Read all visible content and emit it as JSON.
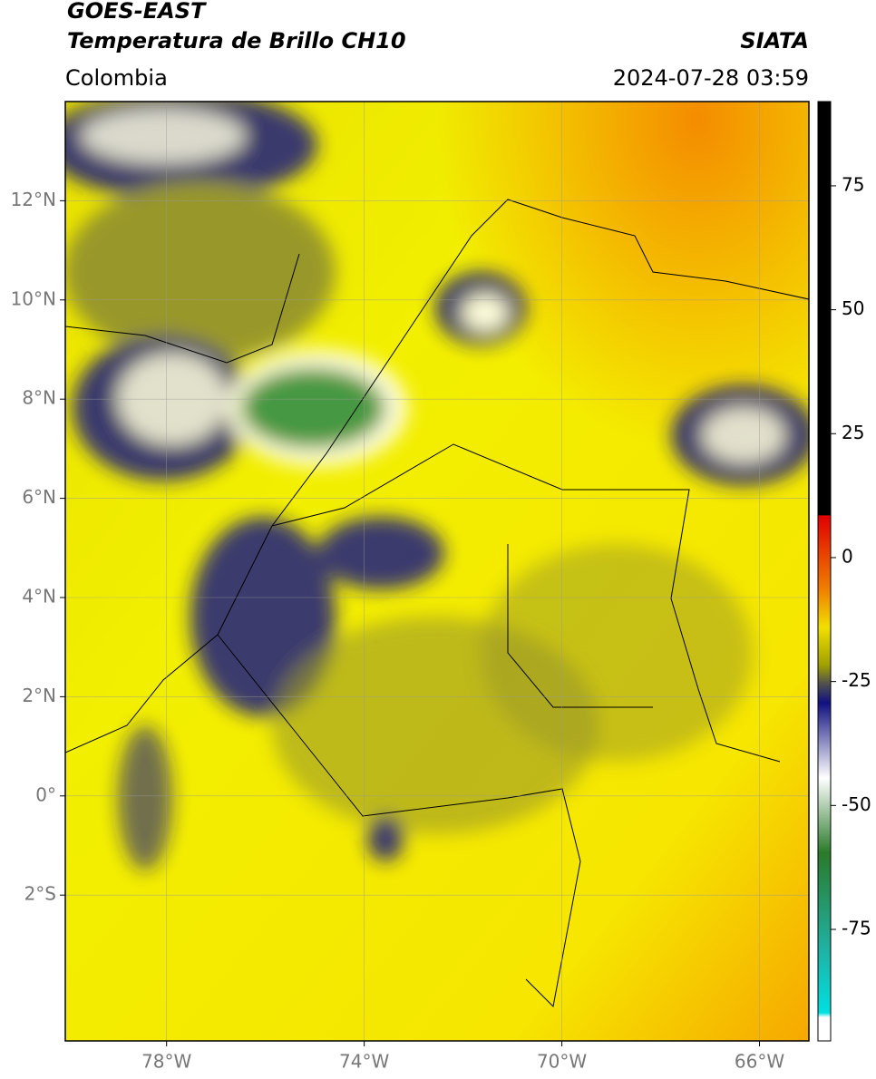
{
  "header": {
    "title": "GOES-EAST",
    "subtitle": "Temperatura de Brillo CH10",
    "source": "SIATA",
    "region": "Colombia",
    "datetime": "2024-07-28 03:59"
  },
  "map": {
    "xlim": [
      -80.05,
      -65.0
    ],
    "ylim": [
      -4.94,
      14.0
    ],
    "xticks": [
      {
        "value": -78,
        "label": "78°W"
      },
      {
        "value": -74,
        "label": "74°W"
      },
      {
        "value": -70,
        "label": "70°W"
      },
      {
        "value": -66,
        "label": "66°W"
      }
    ],
    "yticks": [
      {
        "value": 12,
        "label": "12°N"
      },
      {
        "value": 10,
        "label": "10°N"
      },
      {
        "value": 8,
        "label": "8°N"
      },
      {
        "value": 6,
        "label": "6°N"
      },
      {
        "value": 4,
        "label": "4°N"
      },
      {
        "value": 2,
        "label": "2°N"
      },
      {
        "value": 0,
        "label": "0°"
      },
      {
        "value": -2,
        "label": "2°S"
      }
    ],
    "grid": true
  },
  "colorbar": {
    "clim": [
      -97.5,
      92
    ],
    "ticks": [
      75,
      50,
      25,
      0,
      -25,
      -50,
      -75
    ]
  }
}
